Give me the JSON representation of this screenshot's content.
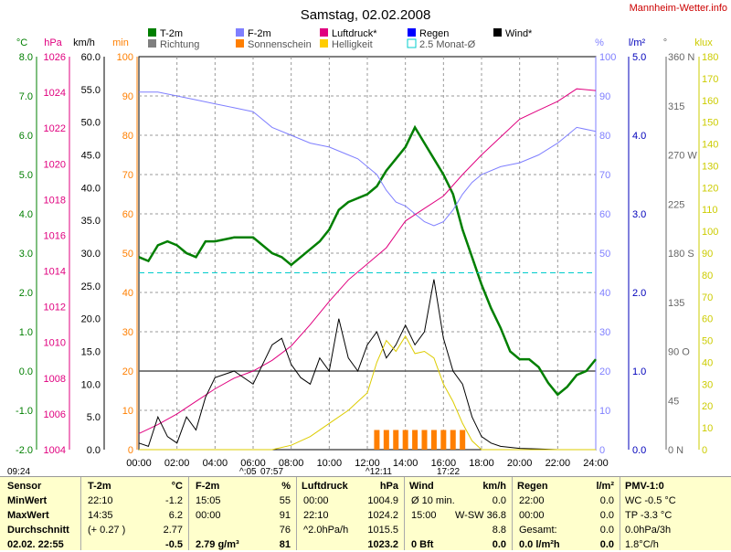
{
  "title": "Samstag, 02.02.2008",
  "site": "Mannheim-Wetter.info",
  "colors": {
    "temp": "#007f00",
    "humidity": "#7f7fff",
    "pressure": "#e0007f",
    "rain": "#0000ff",
    "wind": "#000000",
    "direction": "#7f7f7f",
    "sunshine": "#ff7f00",
    "brightness": "#ffff00",
    "avg": "#00cccc",
    "plot_bg": "#ffffff",
    "table_bg": "#ffffcc"
  },
  "legend": [
    {
      "label": "T-2m",
      "color": "#007f00",
      "kind": "box"
    },
    {
      "label": "F-2m",
      "color": "#7f7fff",
      "kind": "box"
    },
    {
      "label": "Luftdruck*",
      "color": "#e0007f",
      "kind": "box"
    },
    {
      "label": "Regen",
      "color": "#0000ff",
      "kind": "box"
    },
    {
      "label": "Wind*",
      "color": "#000000",
      "kind": "box"
    },
    {
      "label": "Richtung",
      "color": "#7f7f7f",
      "kind": "box"
    },
    {
      "label": "Sonnenschein",
      "color": "#ff7f00",
      "kind": "box"
    },
    {
      "label": "Helligkeit",
      "color": "#ffcc00",
      "kind": "box"
    },
    {
      "label": "2.5 Monat-Ø",
      "color": "#00cccc",
      "kind": "outline"
    }
  ],
  "axes": {
    "temp": {
      "unit": "°C",
      "ticks": [
        "8.0",
        "7.0",
        "6.0",
        "5.0",
        "4.0",
        "3.0",
        "2.0",
        "1.0",
        "0.0",
        "-1.0",
        "-2.0"
      ]
    },
    "pressure": {
      "unit": "hPa",
      "ticks": [
        "1026",
        "1024",
        "1022",
        "1020",
        "1018",
        "1016",
        "1014",
        "1012",
        "1010",
        "1008",
        "1006",
        "1004"
      ]
    },
    "wind": {
      "unit": "km/h",
      "ticks": [
        "60.0",
        "55.0",
        "50.0",
        "45.0",
        "40.0",
        "35.0",
        "30.0",
        "25.0",
        "20.0",
        "15.0",
        "10.0",
        "5.0",
        "0.0"
      ]
    },
    "minutes": {
      "unit": "min",
      "ticks": [
        "100",
        "90",
        "80",
        "70",
        "60",
        "50",
        "40",
        "30",
        "20",
        "10",
        "0"
      ]
    },
    "humidity": {
      "unit": "%",
      "ticks": [
        "100",
        "90",
        "80",
        "70",
        "60",
        "50",
        "40",
        "30",
        "20",
        "10",
        "0"
      ]
    },
    "rain": {
      "unit": "l/m²",
      "ticks": [
        "5.0",
        "4.0",
        "3.0",
        "2.0",
        "1.0",
        "0.0"
      ]
    },
    "direction": {
      "unit": "°",
      "ticks": [
        "360 N",
        "315",
        "270 W",
        "225",
        "180 S",
        "135",
        "90 O",
        "45",
        "0 N"
      ]
    },
    "brightness": {
      "unit": "klux",
      "ticks": [
        "180",
        "170",
        "160",
        "150",
        "140",
        "130",
        "120",
        "110",
        "100",
        "90",
        "80",
        "70",
        "60",
        "50",
        "40",
        "30",
        "20",
        "10",
        "0"
      ]
    },
    "x": {
      "ticks": [
        "00:00",
        "02:00",
        "04:00",
        "06:00",
        "08:00",
        "10:00",
        "12:00",
        "14:00",
        "16:00",
        "18:00",
        "20:00",
        "22:00",
        "24:00"
      ]
    }
  },
  "markers": {
    "sunrise_left": "09:24",
    "sunrise": "^:05",
    "t1": "07:57",
    "noon": "^12:11",
    "sunset": "17:22"
  },
  "chart_data": {
    "type": "line",
    "title": "Samstag, 02.02.2008",
    "x_range": [
      "00:00",
      "24:00"
    ],
    "series": [
      {
        "name": "T-2m",
        "unit": "°C",
        "x": [
          0,
          0.5,
          1,
          1.5,
          2,
          2.5,
          3,
          3.5,
          4,
          5,
          6,
          7,
          7.5,
          8,
          8.5,
          9,
          9.5,
          10,
          10.5,
          11,
          12,
          12.5,
          13,
          13.5,
          14,
          14.5,
          15,
          15.5,
          16,
          16.5,
          17,
          17.5,
          18,
          18.5,
          19,
          19.5,
          20,
          20.5,
          21,
          21.5,
          22,
          22.5,
          23,
          23.5,
          24
        ],
        "y": [
          2.9,
          2.8,
          3.2,
          3.3,
          3.2,
          3.0,
          2.9,
          3.3,
          3.3,
          3.4,
          3.4,
          3.0,
          2.9,
          2.7,
          2.9,
          3.1,
          3.3,
          3.6,
          4.1,
          4.3,
          4.5,
          4.7,
          5.1,
          5.4,
          5.7,
          6.2,
          5.8,
          5.4,
          5.0,
          4.5,
          3.6,
          2.9,
          2.2,
          1.6,
          1.1,
          0.5,
          0.3,
          0.3,
          0.1,
          -0.3,
          -0.6,
          -0.4,
          -0.1,
          0.0,
          0.3
        ]
      },
      {
        "name": "F-2m",
        "unit": "%",
        "x": [
          0,
          1,
          2,
          3,
          4,
          5,
          6,
          7,
          8,
          9,
          10,
          11,
          11.5,
          12,
          12.5,
          13,
          13.5,
          14,
          14.5,
          15,
          15.5,
          16,
          16.5,
          17,
          17.5,
          18,
          19,
          20,
          21,
          22,
          22.5,
          23,
          24
        ],
        "y": [
          91,
          91,
          90,
          89,
          88,
          87,
          86,
          82,
          80,
          78,
          77,
          75,
          74,
          72,
          70,
          66,
          63,
          62,
          60,
          58,
          57,
          58,
          61,
          65,
          68,
          70,
          72,
          73,
          75,
          78,
          80,
          82,
          81
        ]
      },
      {
        "name": "Luftdruck*",
        "unit": "hPa",
        "x": [
          0,
          1,
          2,
          3,
          4,
          5,
          6,
          7,
          8,
          9,
          10,
          11,
          12,
          13,
          14,
          15,
          16,
          17,
          18,
          19,
          20,
          21,
          22,
          23,
          24
        ],
        "y": [
          1004.9,
          1005.4,
          1006.0,
          1006.7,
          1007.4,
          1008.0,
          1008.4,
          1009.0,
          1009.8,
          1011.0,
          1012.3,
          1013.5,
          1014.4,
          1015.3,
          1016.8,
          1017.5,
          1018.2,
          1019.4,
          1020.5,
          1021.5,
          1022.5,
          1023.0,
          1023.5,
          1024.2,
          1024.1
        ]
      },
      {
        "name": "Wind*",
        "unit": "km/h",
        "x": [
          0,
          0.5,
          1,
          1.5,
          2,
          2.5,
          3,
          3.5,
          4,
          5,
          6,
          7,
          7.5,
          8,
          8.5,
          9,
          9.5,
          10,
          10.5,
          11,
          11.5,
          12,
          12.5,
          13,
          13.5,
          14,
          14.5,
          15,
          15.5,
          16,
          16.5,
          17,
          17.5,
          18,
          18.5,
          19,
          20,
          21,
          22,
          23,
          24
        ],
        "y": [
          1,
          0.5,
          5,
          2,
          1,
          5,
          3,
          8,
          11,
          12,
          10,
          16,
          17,
          13,
          11,
          10,
          14,
          12,
          20,
          14,
          12,
          16,
          18,
          14,
          16,
          19,
          16,
          18,
          26,
          17,
          12,
          10,
          5,
          2,
          1,
          0.5,
          0.2,
          0.1,
          0,
          0,
          0
        ]
      },
      {
        "name": "Sonnenschein",
        "unit": "min",
        "x": [
          0,
          12.5,
          13.0,
          13.5,
          14.0,
          14.5,
          15.0,
          15.5,
          16.0,
          16.5,
          17.0,
          17.5,
          24
        ],
        "y": [
          0,
          5,
          5,
          5,
          5,
          5,
          5,
          5,
          5,
          5,
          5,
          0,
          0
        ]
      },
      {
        "name": "Helligkeit",
        "unit": "klux",
        "x": [
          0,
          7,
          8,
          9,
          10,
          11,
          11.5,
          12,
          12.5,
          13,
          13.5,
          14,
          14.5,
          15,
          15.5,
          16,
          16.5,
          17,
          17.5,
          18,
          24
        ],
        "y": [
          0,
          0,
          2,
          6,
          12,
          18,
          22,
          26,
          40,
          50,
          45,
          52,
          44,
          45,
          42,
          30,
          22,
          12,
          4,
          0,
          0
        ]
      },
      {
        "name": "2.5 Monat-Ø",
        "unit": "°C",
        "x": [
          0,
          24
        ],
        "y": [
          2.5,
          2.5
        ]
      }
    ]
  },
  "table": {
    "sensor": {
      "header": "Sensor",
      "rows": [
        "MinWert",
        "MaxWert",
        "Durchschnitt",
        "02.02. 22:55"
      ]
    },
    "temp": {
      "header": "T-2m",
      "unit": "°C",
      "rows": [
        [
          "22:10",
          "-1.2"
        ],
        [
          "14:35",
          "6.2"
        ],
        [
          "(+ 0.27 )",
          "2.77"
        ],
        [
          "",
          "-0.5"
        ]
      ]
    },
    "hum": {
      "header": "F-2m",
      "unit": "%",
      "rows": [
        [
          "15:05",
          "55"
        ],
        [
          "00:00",
          "91"
        ],
        [
          "",
          "76"
        ],
        [
          "2.79 g/m³",
          "81"
        ]
      ]
    },
    "press": {
      "header": "Luftdruck",
      "unit": "hPa",
      "rows": [
        [
          "00:00",
          "1004.9"
        ],
        [
          "22:10",
          "1024.2"
        ],
        [
          "^2.0hPa/h",
          "1015.5"
        ],
        [
          "",
          "1023.2"
        ]
      ]
    },
    "wind": {
      "header": "Wind",
      "unit": "km/h",
      "rows": [
        [
          "Ø 10 min.",
          "0.0"
        ],
        [
          "15:00",
          "W-SW 36.8"
        ],
        [
          "",
          "8.8"
        ],
        [
          "0 Bft",
          "0.0"
        ]
      ]
    },
    "rain": {
      "header": "Regen",
      "unit": "l/m²",
      "rows": [
        [
          "22:00",
          "0.0"
        ],
        [
          "00:00",
          "0.0"
        ],
        [
          "Gesamt:",
          "0.0"
        ],
        [
          "0.0 l/m²h",
          "0.0"
        ]
      ]
    },
    "pmv": {
      "header": "PMV-1:0",
      "rows": [
        "WC -0.5 °C",
        "TP -3.3 °C",
        "0.0hPa/3h",
        "1.8°C/h"
      ]
    }
  }
}
